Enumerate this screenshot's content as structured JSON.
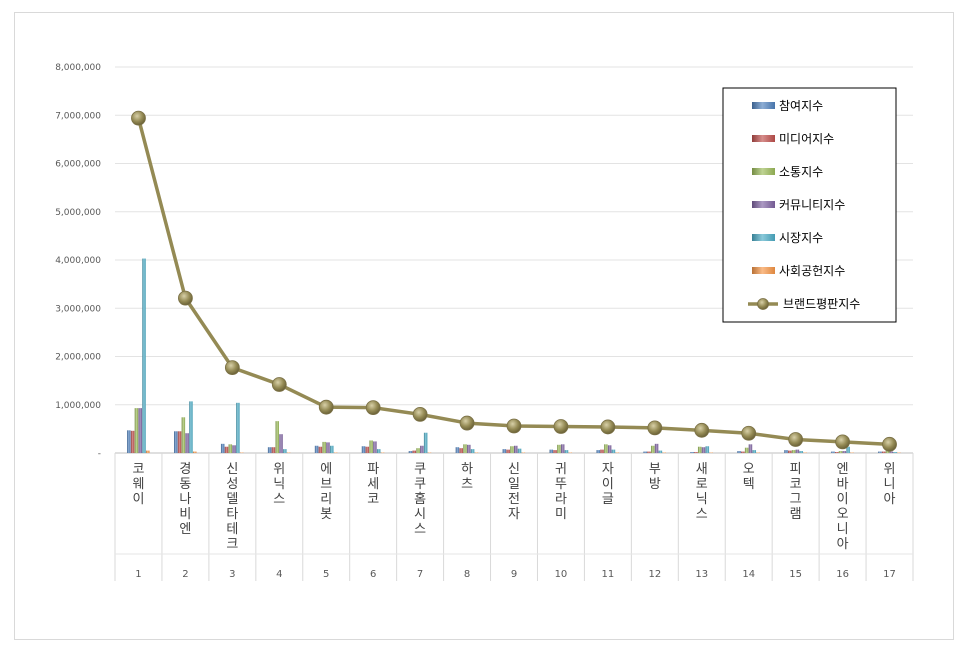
{
  "chart_data": {
    "type": "bar",
    "ylim": [
      0,
      8000000
    ],
    "yticks": [
      "-",
      "1,000,000",
      "2,000,000",
      "3,000,000",
      "4,000,000",
      "5,000,000",
      "6,000,000",
      "7,000,000",
      "8,000,000"
    ],
    "ytick_values": [
      0,
      1000000,
      2000000,
      3000000,
      4000000,
      5000000,
      6000000,
      7000000,
      8000000
    ],
    "grid": true,
    "legend_position": "top-right",
    "categories": [
      "코웨이",
      "경동나비엔",
      "신성델타테크",
      "위닉스",
      "에브리봇",
      "파세코",
      "쿠쿠홈시스",
      "하츠",
      "신일전자",
      "귀뚜라미",
      "자이글",
      "부방",
      "새로닉스",
      "오텍",
      "피코그램",
      "엔바이오니아",
      "위니아"
    ],
    "indices": [
      "1",
      "2",
      "3",
      "4",
      "5",
      "6",
      "7",
      "8",
      "9",
      "10",
      "11",
      "12",
      "13",
      "14",
      "15",
      "16",
      "17"
    ],
    "series": [
      {
        "name": "참여지수",
        "color": "#4f81bd",
        "values": [
          470000,
          450000,
          190000,
          120000,
          150000,
          140000,
          40000,
          120000,
          80000,
          70000,
          60000,
          30000,
          20000,
          40000,
          60000,
          30000,
          30000
        ]
      },
      {
        "name": "미디어지수",
        "color": "#c0504d",
        "values": [
          460000,
          450000,
          130000,
          120000,
          130000,
          130000,
          50000,
          100000,
          70000,
          60000,
          70000,
          30000,
          20000,
          30000,
          50000,
          20000,
          30000
        ]
      },
      {
        "name": "소통지수",
        "color": "#9bbb59",
        "values": [
          930000,
          740000,
          180000,
          660000,
          230000,
          260000,
          100000,
          180000,
          140000,
          170000,
          180000,
          150000,
          130000,
          110000,
          60000,
          40000,
          40000
        ]
      },
      {
        "name": "커뮤니티지수",
        "color": "#8064a2",
        "values": [
          930000,
          410000,
          160000,
          390000,
          220000,
          240000,
          150000,
          170000,
          150000,
          180000,
          160000,
          190000,
          120000,
          180000,
          70000,
          40000,
          30000
        ]
      },
      {
        "name": "시장지수",
        "color": "#4bacc6",
        "values": [
          4030000,
          1070000,
          1040000,
          80000,
          150000,
          80000,
          420000,
          80000,
          90000,
          60000,
          70000,
          50000,
          140000,
          60000,
          40000,
          130000,
          20000
        ]
      },
      {
        "name": "사회공헌지수",
        "color": "#f79646",
        "values": [
          50000,
          30000,
          10000,
          10000,
          10000,
          10000,
          10000,
          10000,
          10000,
          10000,
          10000,
          10000,
          10000,
          10000,
          10000,
          10000,
          10000
        ]
      }
    ],
    "line_series": {
      "name": "브랜드평판지수",
      "color": "#948a54",
      "values": [
        6940000,
        3210000,
        1770000,
        1420000,
        950000,
        940000,
        800000,
        620000,
        560000,
        550000,
        540000,
        520000,
        470000,
        410000,
        280000,
        230000,
        180000
      ]
    }
  }
}
